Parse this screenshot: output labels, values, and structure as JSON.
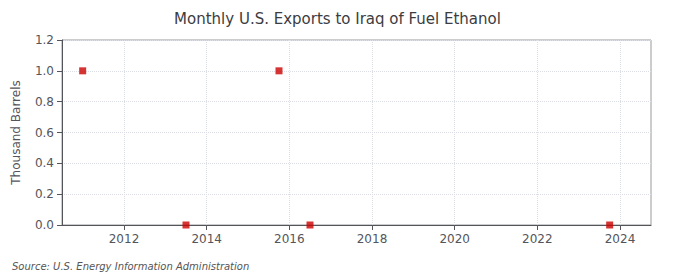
{
  "chart_data": {
    "type": "scatter",
    "title": "Monthly U.S. Exports to Iraq of Fuel Ethanol",
    "ylabel": "Thousand Barrels",
    "annotations": [
      "Source: U.S. Energy Information Administration"
    ],
    "x": [
      2011.0,
      2013.5,
      2015.75,
      2016.5,
      2023.75
    ],
    "values": [
      1.0,
      0.0,
      1.0,
      0.0,
      0.0
    ],
    "color": "#cc0000",
    "marker": "square",
    "xlim": [
      2010.5,
      2024.75
    ],
    "ylim": [
      0.0,
      1.2
    ],
    "xticks": [
      2012,
      2014,
      2016,
      2018,
      2020,
      2022,
      2024
    ],
    "yticks": [
      {
        "value": 0.0,
        "label": "0.0"
      },
      0.2,
      0.4,
      0.6,
      0.8,
      {
        "value": 1.0,
        "label": "1.0"
      },
      1.2
    ],
    "grid": true
  }
}
